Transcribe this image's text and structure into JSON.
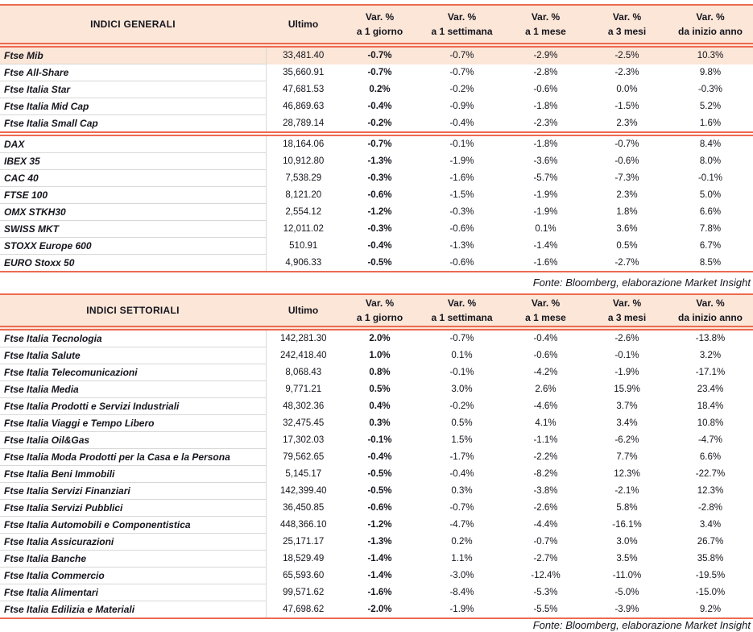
{
  "page": {
    "colors": {
      "accent_border": "#ED6A50",
      "header_bg": "#FBE6D7",
      "highlight_row_bg": "#FBE6D7",
      "row_divider": "#D8D8D8",
      "text": "#15151E"
    }
  },
  "tables": [
    {
      "title": "INDICI GENERALI",
      "columns": [
        {
          "line1": "Ultimo",
          "line2": ""
        },
        {
          "line1": "Var. %",
          "line2": "a 1 giorno"
        },
        {
          "line1": "Var. %",
          "line2": "a 1 settimana"
        },
        {
          "line1": "Var. %",
          "line2": "a 1 mese"
        },
        {
          "line1": "Var. %",
          "line2": "a 3 mesi"
        },
        {
          "line1": "Var. %",
          "line2": "da inizio anno"
        }
      ],
      "groups": [
        {
          "rows": [
            {
              "name": "Ftse Mib",
              "highlight": true,
              "values": [
                "33,481.40",
                "-0.7%",
                "-0.7%",
                "-2.9%",
                "-2.5%",
                "10.3%"
              ]
            },
            {
              "name": "Ftse All-Share",
              "highlight": false,
              "values": [
                "35,660.91",
                "-0.7%",
                "-0.7%",
                "-2.8%",
                "-2.3%",
                "9.8%"
              ]
            },
            {
              "name": "Ftse Italia Star",
              "highlight": false,
              "values": [
                "47,681.53",
                "0.2%",
                "-0.2%",
                "-0.6%",
                "0.0%",
                "-0.3%"
              ]
            },
            {
              "name": "Ftse Italia Mid Cap",
              "highlight": false,
              "values": [
                "46,869.63",
                "-0.4%",
                "-0.9%",
                "-1.8%",
                "-1.5%",
                "5.2%"
              ]
            },
            {
              "name": "Ftse Italia Small Cap",
              "highlight": false,
              "values": [
                "28,789.14",
                "-0.2%",
                "-0.4%",
                "-2.3%",
                "2.3%",
                "1.6%"
              ]
            }
          ]
        },
        {
          "rows": [
            {
              "name": "DAX",
              "highlight": false,
              "values": [
                "18,164.06",
                "-0.7%",
                "-0.1%",
                "-1.8%",
                "-0.7%",
                "8.4%"
              ]
            },
            {
              "name": "IBEX 35",
              "highlight": false,
              "values": [
                "10,912.80",
                "-1.3%",
                "-1.9%",
                "-3.6%",
                "-0.6%",
                "8.0%"
              ]
            },
            {
              "name": "CAC 40",
              "highlight": false,
              "values": [
                "7,538.29",
                "-0.3%",
                "-1.6%",
                "-5.7%",
                "-7.3%",
                "-0.1%"
              ]
            },
            {
              "name": "FTSE 100",
              "highlight": false,
              "values": [
                "8,121.20",
                "-0.6%",
                "-1.5%",
                "-1.9%",
                "2.3%",
                "5.0%"
              ]
            },
            {
              "name": "OMX STKH30",
              "highlight": false,
              "values": [
                "2,554.12",
                "-1.2%",
                "-0.3%",
                "-1.9%",
                "1.8%",
                "6.6%"
              ]
            },
            {
              "name": "SWISS MKT",
              "highlight": false,
              "values": [
                "12,011.02",
                "-0.3%",
                "-0.6%",
                "0.1%",
                "3.6%",
                "7.8%"
              ]
            },
            {
              "name": "STOXX Europe 600",
              "highlight": false,
              "values": [
                "510.91",
                "-0.4%",
                "-1.3%",
                "-1.4%",
                "0.5%",
                "6.7%"
              ]
            },
            {
              "name": "EURO Stoxx 50",
              "highlight": false,
              "values": [
                "4,906.33",
                "-0.5%",
                "-0.6%",
                "-1.6%",
                "-2.7%",
                "8.5%"
              ]
            }
          ]
        }
      ],
      "source": "Fonte: Bloomberg, elaborazione Market Insight"
    },
    {
      "title": "INDICI SETTORIALI",
      "columns": [
        {
          "line1": "Ultimo",
          "line2": ""
        },
        {
          "line1": "Var. %",
          "line2": "a 1 giorno"
        },
        {
          "line1": "Var. %",
          "line2": "a 1 settimana"
        },
        {
          "line1": "Var. %",
          "line2": "a 1 mese"
        },
        {
          "line1": "Var. %",
          "line2": "a 3 mesi"
        },
        {
          "line1": "Var. %",
          "line2": "da inizio anno"
        }
      ],
      "groups": [
        {
          "rows": [
            {
              "name": "Ftse Italia Tecnologia",
              "highlight": false,
              "values": [
                "142,281.30",
                "2.0%",
                "-0.7%",
                "-0.4%",
                "-2.6%",
                "-13.8%"
              ]
            },
            {
              "name": "Ftse Italia Salute",
              "highlight": false,
              "values": [
                "242,418.40",
                "1.0%",
                "0.1%",
                "-0.6%",
                "-0.1%",
                "3.2%"
              ]
            },
            {
              "name": "Ftse Italia Telecomunicazioni",
              "highlight": false,
              "values": [
                "8,068.43",
                "0.8%",
                "-0.1%",
                "-4.2%",
                "-1.9%",
                "-17.1%"
              ]
            },
            {
              "name": "Ftse Italia Media",
              "highlight": false,
              "values": [
                "9,771.21",
                "0.5%",
                "3.0%",
                "2.6%",
                "15.9%",
                "23.4%"
              ]
            },
            {
              "name": "Ftse Italia Prodotti e Servizi Industriali",
              "highlight": false,
              "values": [
                "48,302.36",
                "0.4%",
                "-0.2%",
                "-4.6%",
                "3.7%",
                "18.4%"
              ]
            },
            {
              "name": "Ftse Italia Viaggi e Tempo Libero",
              "highlight": false,
              "values": [
                "32,475.45",
                "0.3%",
                "0.5%",
                "4.1%",
                "3.4%",
                "10.8%"
              ]
            },
            {
              "name": "Ftse Italia Oil&Gas",
              "highlight": false,
              "values": [
                "17,302.03",
                "-0.1%",
                "1.5%",
                "-1.1%",
                "-6.2%",
                "-4.7%"
              ]
            },
            {
              "name": "Ftse Italia Moda Prodotti per la Casa e la Persona",
              "highlight": false,
              "values": [
                "79,562.65",
                "-0.4%",
                "-1.7%",
                "-2.2%",
                "7.7%",
                "6.6%"
              ]
            },
            {
              "name": "Ftse Italia Beni Immobili",
              "highlight": false,
              "values": [
                "5,145.17",
                "-0.5%",
                "-0.4%",
                "-8.2%",
                "12.3%",
                "-22.7%"
              ]
            },
            {
              "name": "Ftse Italia Servizi Finanziari",
              "highlight": false,
              "values": [
                "142,399.40",
                "-0.5%",
                "0.3%",
                "-3.8%",
                "-2.1%",
                "12.3%"
              ]
            },
            {
              "name": "Ftse Italia Servizi Pubblici",
              "highlight": false,
              "values": [
                "36,450.85",
                "-0.6%",
                "-0.7%",
                "-2.6%",
                "5.8%",
                "-2.8%"
              ]
            },
            {
              "name": "Ftse Italia Automobili e Componentistica",
              "highlight": false,
              "values": [
                "448,366.10",
                "-1.2%",
                "-4.7%",
                "-4.4%",
                "-16.1%",
                "3.4%"
              ]
            },
            {
              "name": "Ftse Italia Assicurazioni",
              "highlight": false,
              "values": [
                "25,171.17",
                "-1.3%",
                "0.2%",
                "-0.7%",
                "3.0%",
                "26.7%"
              ]
            },
            {
              "name": "Ftse Italia Banche",
              "highlight": false,
              "values": [
                "18,529.49",
                "-1.4%",
                "1.1%",
                "-2.7%",
                "3.5%",
                "35.8%"
              ]
            },
            {
              "name": "Ftse Italia Commercio",
              "highlight": false,
              "values": [
                "65,593.60",
                "-1.4%",
                "-3.0%",
                "-12.4%",
                "-11.0%",
                "-19.5%"
              ]
            },
            {
              "name": "Ftse Italia Alimentari",
              "highlight": false,
              "values": [
                "99,571.62",
                "-1.6%",
                "-8.4%",
                "-5.3%",
                "-5.0%",
                "-15.0%"
              ]
            },
            {
              "name": "Ftse Italia Edilizia e Materiali",
              "highlight": false,
              "values": [
                "47,698.62",
                "-2.0%",
                "-1.9%",
                "-5.5%",
                "-3.9%",
                "9.2%"
              ]
            }
          ]
        }
      ],
      "source": "Fonte: Bloomberg, elaborazione Market Insight"
    }
  ]
}
